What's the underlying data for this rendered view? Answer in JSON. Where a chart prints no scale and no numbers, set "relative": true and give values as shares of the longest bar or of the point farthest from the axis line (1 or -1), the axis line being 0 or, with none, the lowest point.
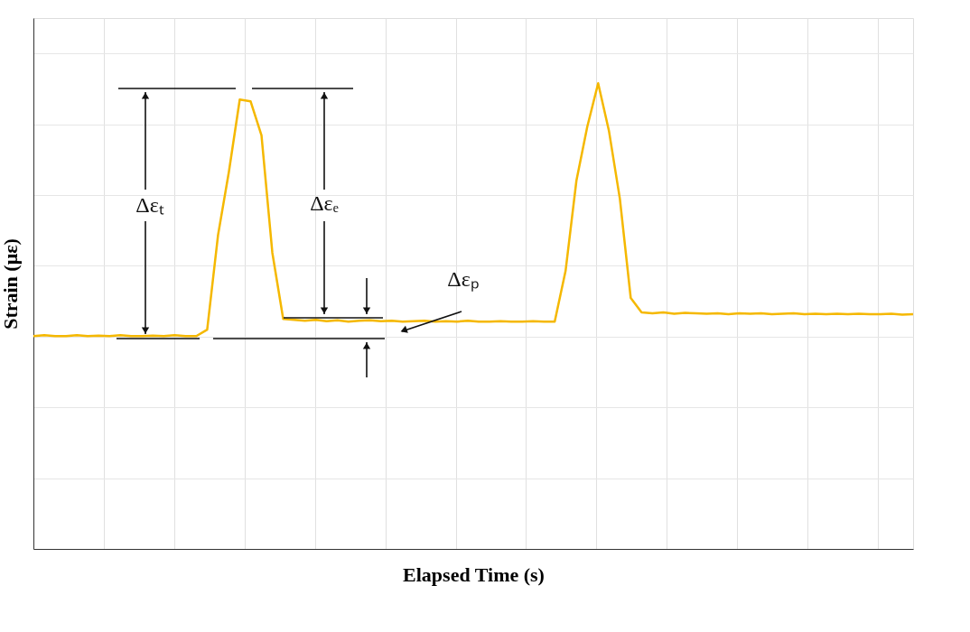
{
  "chart_data": {
    "type": "line",
    "relative": true,
    "xlabel": "Elapsed Time (s)",
    "ylabel": "Strain (με)",
    "grid": true,
    "legend": false,
    "marker": "none",
    "line_style": "solid",
    "categories": [
      null,
      null,
      null,
      null,
      null,
      null,
      null,
      null,
      null,
      null,
      null,
      null,
      null,
      null,
      null,
      null,
      null,
      null,
      null,
      null,
      null,
      null,
      null,
      null,
      null,
      null,
      null,
      null,
      null,
      null,
      null,
      null,
      null,
      null,
      null,
      null,
      null,
      null,
      null,
      null,
      null,
      null,
      null,
      null,
      null,
      null,
      null,
      null,
      null,
      null,
      null,
      null,
      null,
      null,
      null,
      null,
      null,
      null,
      null,
      null,
      null,
      null,
      null,
      null,
      null,
      null,
      null,
      null,
      null,
      null,
      null,
      null,
      null,
      null,
      null,
      null,
      null,
      null,
      null,
      null,
      null,
      null
    ],
    "series": [
      {
        "color": "#f5b800",
        "values": [
          0.457,
          0.459,
          0.457,
          0.457,
          0.459,
          0.457,
          0.458,
          0.457,
          0.459,
          0.457,
          0.457,
          0.458,
          0.457,
          0.459,
          0.457,
          0.457,
          0.471,
          0.674,
          0.81,
          0.965,
          0.961,
          0.888,
          0.636,
          0.494,
          0.492,
          0.49,
          0.492,
          0.489,
          0.491,
          0.488,
          0.49,
          0.491,
          0.489,
          0.49,
          0.488,
          0.489,
          0.49,
          0.488,
          0.489,
          0.488,
          0.49,
          0.488,
          0.488,
          0.489,
          0.488,
          0.488,
          0.489,
          0.488,
          0.488,
          0.597,
          0.791,
          0.907,
          1.0,
          0.897,
          0.752,
          0.539,
          0.508,
          0.506,
          0.508,
          0.505,
          0.507,
          0.506,
          0.505,
          0.506,
          0.504,
          0.506,
          0.505,
          0.506,
          0.504,
          0.505,
          0.506,
          0.504,
          0.505,
          0.504,
          0.505,
          0.504,
          0.505,
          0.504,
          0.504,
          0.505,
          0.503,
          0.504
        ]
      }
    ],
    "annotations": [
      "Δεₜ",
      "Δεₑ",
      "Δεₚ"
    ]
  }
}
